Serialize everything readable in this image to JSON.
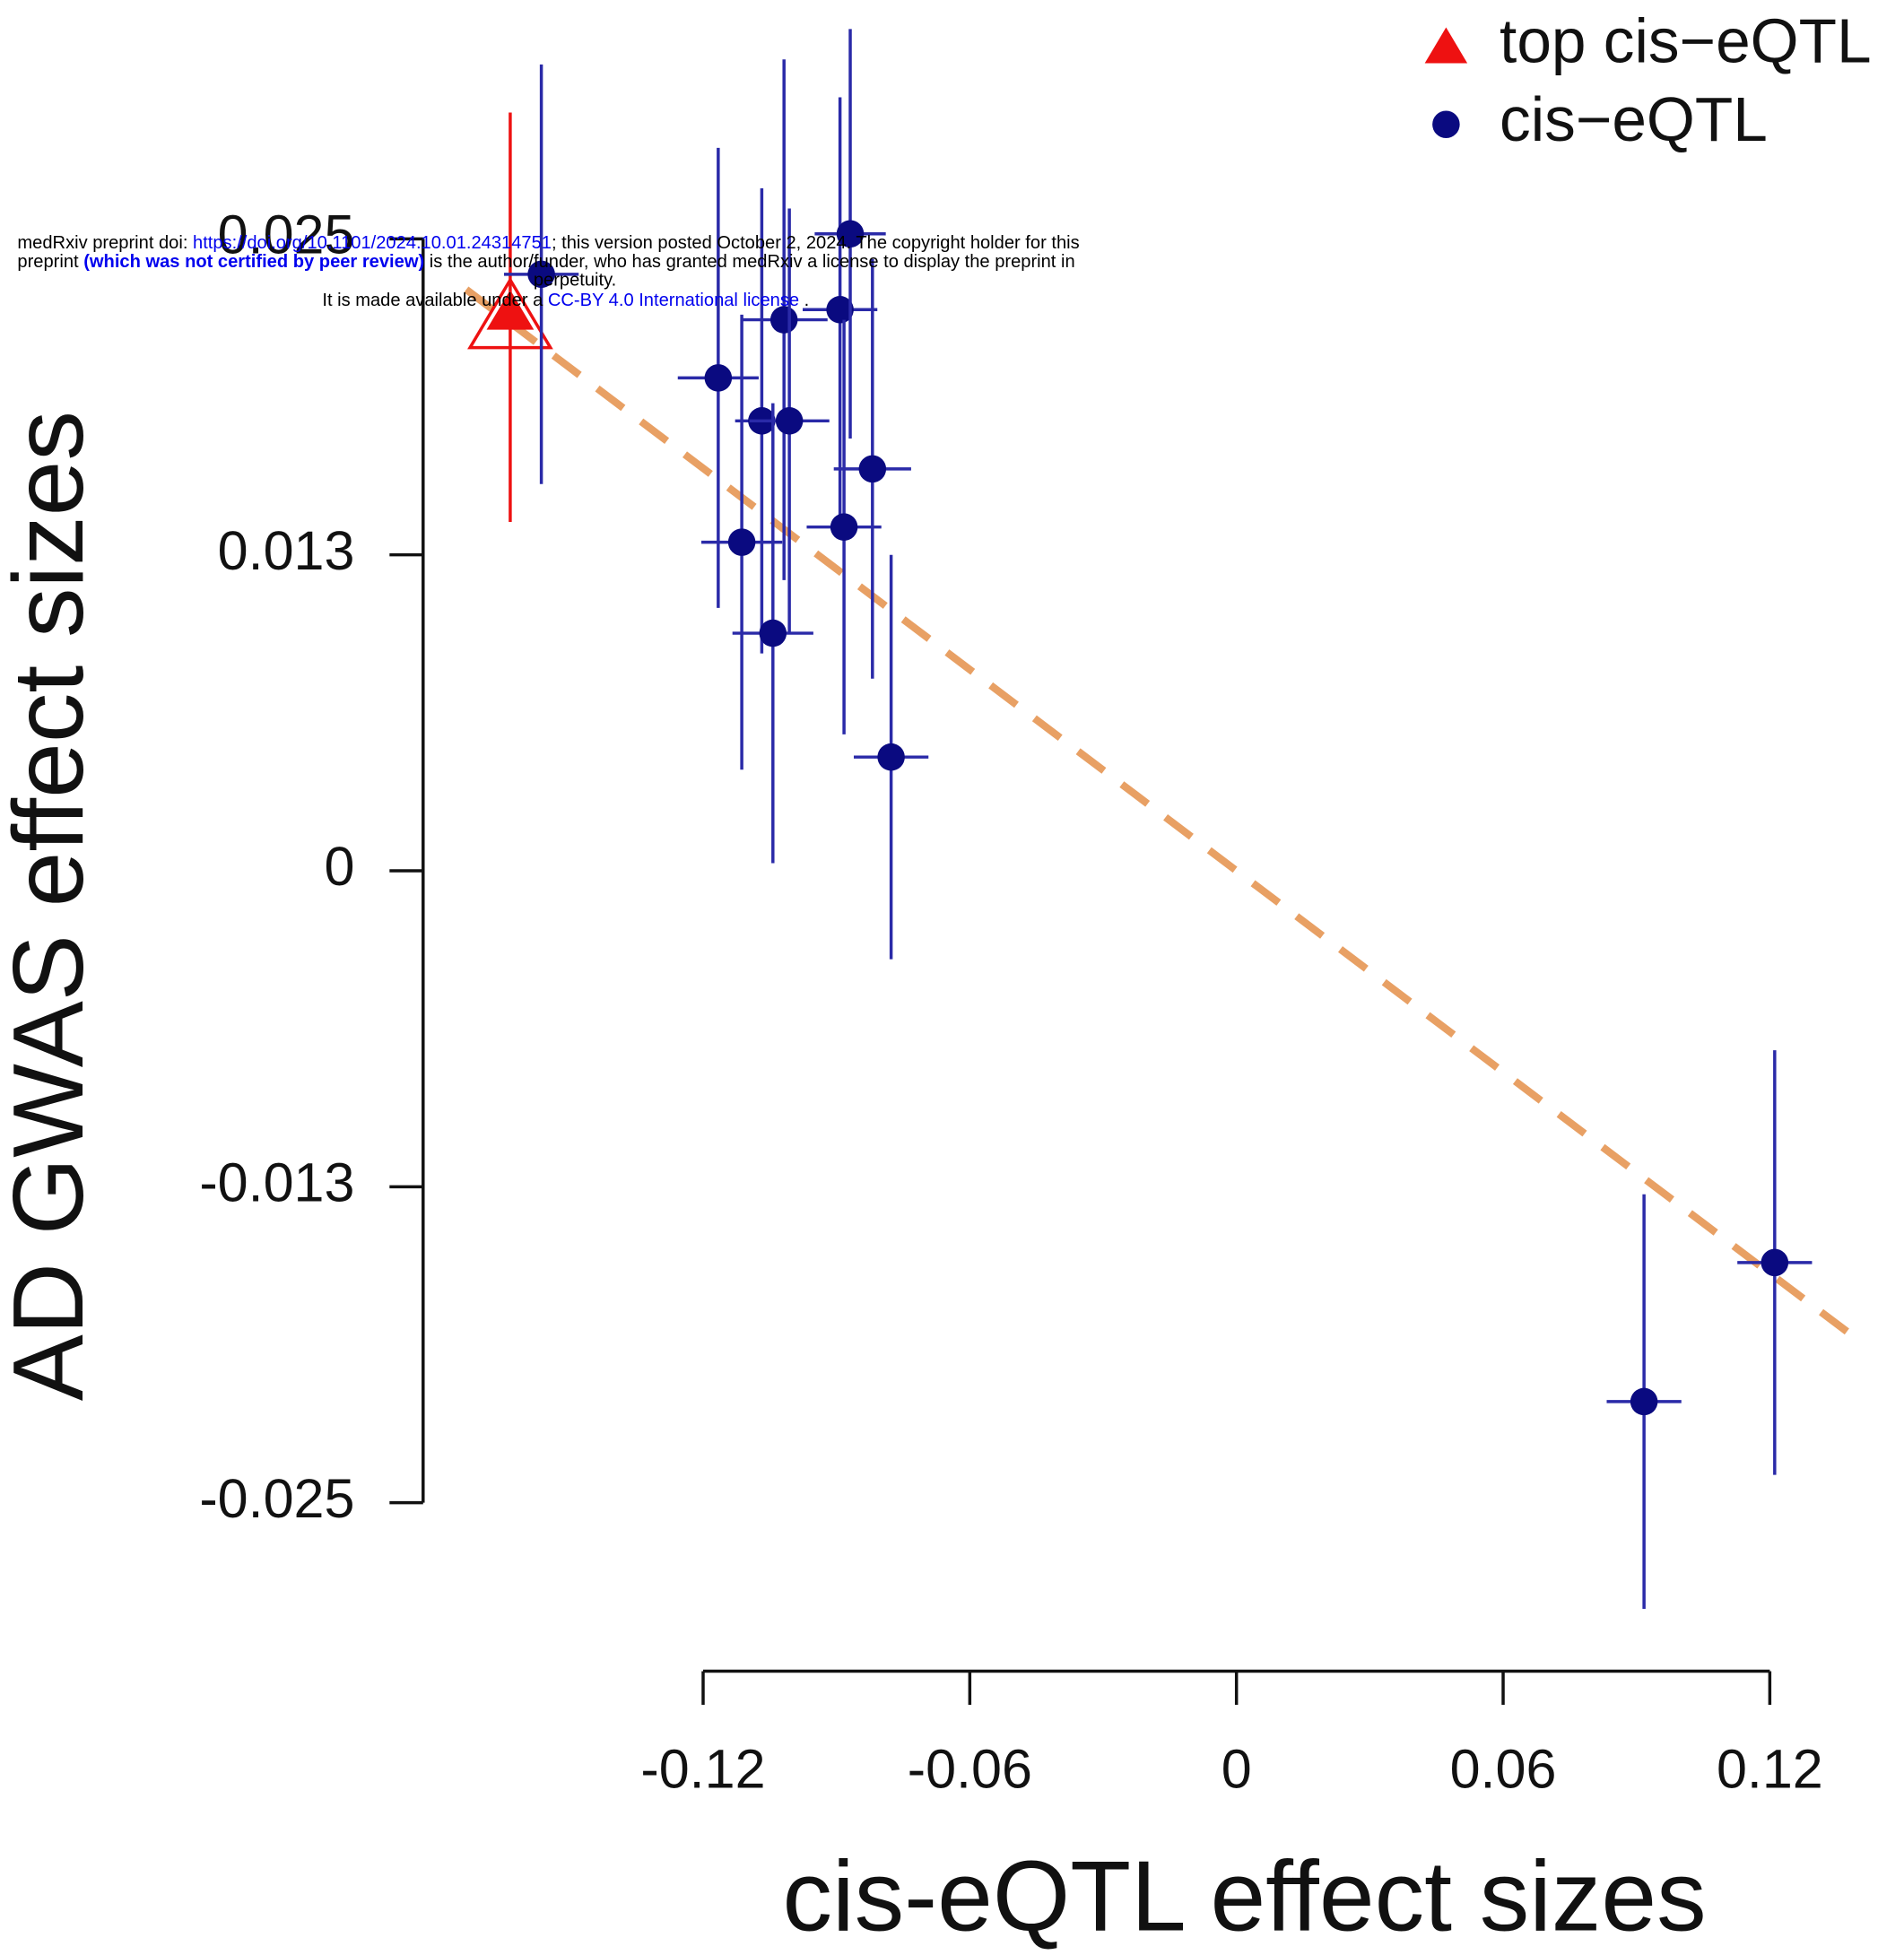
{
  "chart_data": {
    "type": "scatter",
    "xlabel": "cis-eQTL effect sizes",
    "ylabel": "AD GWAS effect sizes",
    "xlim": [
      -0.183,
      0.139
    ],
    "ylim": [
      -0.0295,
      0.0345
    ],
    "xticks": [
      -0.12,
      -0.06,
      0,
      0.06,
      0.12
    ],
    "yticks": [
      {
        "value": -0.025,
        "label": "-0.025"
      },
      {
        "value": -0.0125,
        "label": "-0.013"
      },
      0,
      {
        "value": 0.0125,
        "label": "0.013"
      },
      0.025
    ],
    "legend": "top-right",
    "series": [
      {
        "name": "top cis−eQTL",
        "color": "#ee1111",
        "marker": "triangle",
        "errorbar_color": "#ee1111",
        "x": [
          -0.1634
        ],
        "y": [
          0.0219
        ],
        "xerr": [
          0.003
        ],
        "yerr": [
          0.0081
        ]
      },
      {
        "name": "cis−eQTL",
        "color": "#0a0a80",
        "marker": "circle",
        "errorbar_color": "#2a2aa8",
        "x": [
          -0.1564,
          -0.1166,
          -0.1113,
          -0.1068,
          -0.1043,
          -0.1018,
          -0.1006,
          -0.0892,
          -0.0883,
          -0.0869,
          -0.0819,
          -0.0777,
          0.0917,
          0.1211
        ],
        "y": [
          0.0236,
          0.0195,
          0.013,
          0.0178,
          0.0094,
          0.0218,
          0.0178,
          0.0222,
          0.0136,
          0.0252,
          0.0159,
          0.0045,
          -0.021,
          -0.0155
        ],
        "xerr": [
          0.0084,
          0.0091,
          0.0091,
          0.006,
          0.0091,
          0.0098,
          0.009,
          0.0084,
          0.0084,
          0.008,
          0.0087,
          0.0084,
          0.0084,
          0.0084
        ],
        "yerr": [
          0.0083,
          0.0091,
          0.009,
          0.0092,
          0.0091,
          0.0103,
          0.0084,
          0.0084,
          0.0082,
          0.0081,
          0.0083,
          0.008,
          0.0082,
          0.0084
        ]
      }
    ],
    "fit": {
      "slope": -0.1327,
      "intercept": 0,
      "xrange": [
        -0.1733,
        0.1379
      ],
      "color": "#e8a064",
      "dashed": true
    },
    "watermark": [
      [
        {
          "text": "medRxiv preprint doi: ",
          "color": "#000000"
        },
        {
          "text": "https://doi.org/10.1101/2024.10.01.24314751",
          "color": "#0000ee"
        },
        {
          "text": "; this version posted October 2, 2024. The copyright holder for this",
          "color": "#000000"
        }
      ],
      [
        {
          "text": "preprint ",
          "color": "#000000"
        },
        {
          "text": "(which was not certified by peer review)",
          "color": "#0000ee",
          "bold": true
        },
        {
          "text": " is the author/funder, who has granted medRxiv a license to display the preprint in",
          "color": "#000000"
        }
      ],
      [
        {
          "text": "perpetuity.",
          "color": "#000000"
        }
      ],
      [
        {
          "text": "It is made available under a ",
          "color": "#000000"
        },
        {
          "text": "CC-BY 4.0 International license",
          "color": "#0000ee"
        },
        {
          "text": " .",
          "color": "#000000"
        }
      ]
    ]
  }
}
